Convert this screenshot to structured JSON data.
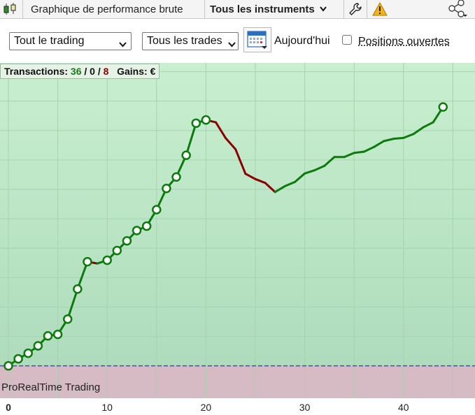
{
  "toolbar": {
    "chart_title": "Graphique de performance brute",
    "instruments_label": "Tous les instruments",
    "icons": [
      "candlestick-icon",
      "chevron-down-icon",
      "wrench-icon",
      "warning-icon",
      "share-icon"
    ]
  },
  "filters": {
    "trading_select": "Tout le trading",
    "trades_select": "Tous les trades",
    "date_label": "Aujourd'hui",
    "open_positions_label": "Positions ouvertes",
    "open_positions_checked": false
  },
  "stats": {
    "label": "Transactions:",
    "winning": "36",
    "neutral": "0",
    "losing": "8",
    "sep": "/",
    "gains_label": "Gains: €"
  },
  "watermark": "ProRealTime Trading",
  "colors": {
    "profit_zone": "#bfe8c8",
    "loss_zone": "#d4b9c2",
    "gain_line": "#0d7a0d",
    "loss_line": "#8b0000",
    "winning_count": "#1a7a1a",
    "losing_count": "#8b0000"
  },
  "chart_data": {
    "type": "line",
    "xlabel": "",
    "ylabel": "",
    "xlim": [
      0,
      47
    ],
    "ylim": [
      -11,
      103
    ],
    "x_ticks": [
      "0",
      "10",
      "20",
      "30",
      "40"
    ],
    "baseline": 0,
    "x": [
      0,
      1,
      2,
      3,
      4,
      5,
      6,
      7,
      8,
      9,
      10,
      11,
      12,
      13,
      14,
      15,
      16,
      17,
      18,
      19,
      20,
      21,
      22,
      23,
      24,
      25,
      26,
      27,
      28,
      29,
      30,
      31,
      32,
      33,
      34,
      35,
      36,
      37,
      38,
      39,
      40,
      41,
      42,
      43,
      44
    ],
    "y": [
      0,
      2.4,
      4.3,
      6.8,
      10.2,
      10.7,
      15.9,
      26.1,
      35.4,
      34.8,
      35.9,
      39.2,
      42.5,
      46.0,
      47.5,
      53.1,
      60.3,
      64.2,
      71.6,
      82.5,
      83.6,
      82.8,
      77.4,
      73.6,
      65.3,
      63.5,
      62.2,
      59.1,
      61.1,
      62.5,
      65.4,
      66.5,
      68.0,
      71.0,
      71.0,
      72.4,
      72.8,
      74.4,
      76.4,
      77.2,
      77.5,
      78.8,
      81.1,
      82.8,
      88.0
    ],
    "markers": [
      0,
      1,
      2,
      3,
      4,
      5,
      6,
      7,
      8,
      10,
      11,
      12,
      13,
      14,
      15,
      16,
      17,
      18,
      19,
      20,
      44
    ],
    "losing_segments": [
      [
        8,
        9
      ],
      [
        20,
        27
      ]
    ]
  }
}
